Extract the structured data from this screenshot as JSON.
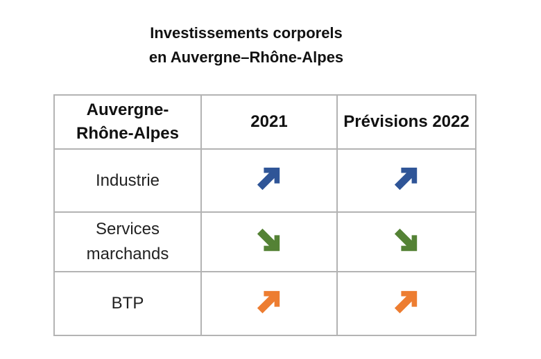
{
  "title": {
    "line1": "Investissements corporels",
    "line2": "en Auvergne–Rhône-Alpes"
  },
  "table": {
    "headers": [
      "Auvergne-Rhône-Alpes",
      "2021",
      "Prévisions 2022"
    ],
    "rows": [
      {
        "label": "Industrie",
        "trend_2021": "up-right-arrow-icon",
        "trend_2022": "up-right-arrow-icon",
        "color": "#2f5597"
      },
      {
        "label": "Services marchands",
        "trend_2021": "down-right-arrow-icon",
        "trend_2022": "down-right-arrow-icon",
        "color": "#548235"
      },
      {
        "label": "BTP",
        "trend_2021": "up-right-arrow-icon",
        "trend_2022": "up-right-arrow-icon",
        "color": "#ed7d31"
      }
    ]
  }
}
